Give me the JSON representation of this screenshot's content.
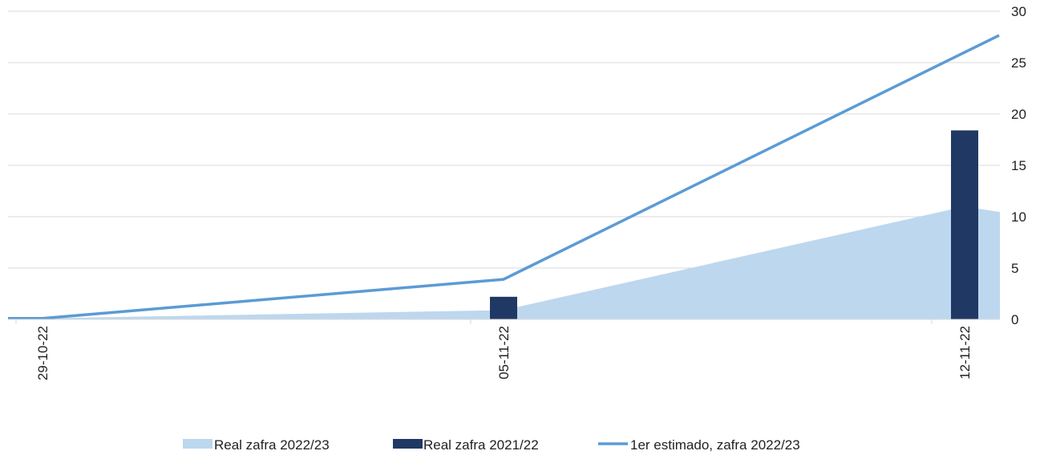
{
  "chart_data": {
    "type": "bar+area+line",
    "title": "",
    "xlabel": "",
    "ylabel": "",
    "categories": [
      "29-10-22",
      "05-11-22",
      "12-11-22"
    ],
    "ylim": [
      0,
      30
    ],
    "y_ticks": [
      0,
      5,
      10,
      15,
      20,
      25,
      30
    ],
    "y_axis_side": "right",
    "grid": true,
    "legend_position": "bottom",
    "series": [
      {
        "name": "Real zafra 2022/23",
        "type": "area",
        "color": "#bdd7ee",
        "values": [
          0.1,
          0.9,
          11.0
        ]
      },
      {
        "name": "Real zafra 2021/22",
        "type": "bar",
        "color": "#203864",
        "values": [
          0,
          2.2,
          18.4
        ]
      },
      {
        "name": "1er estimado, zafra 2022/23",
        "type": "line",
        "color": "#5b9bd5",
        "values": [
          0.1,
          3.9,
          26.0
        ]
      }
    ]
  }
}
